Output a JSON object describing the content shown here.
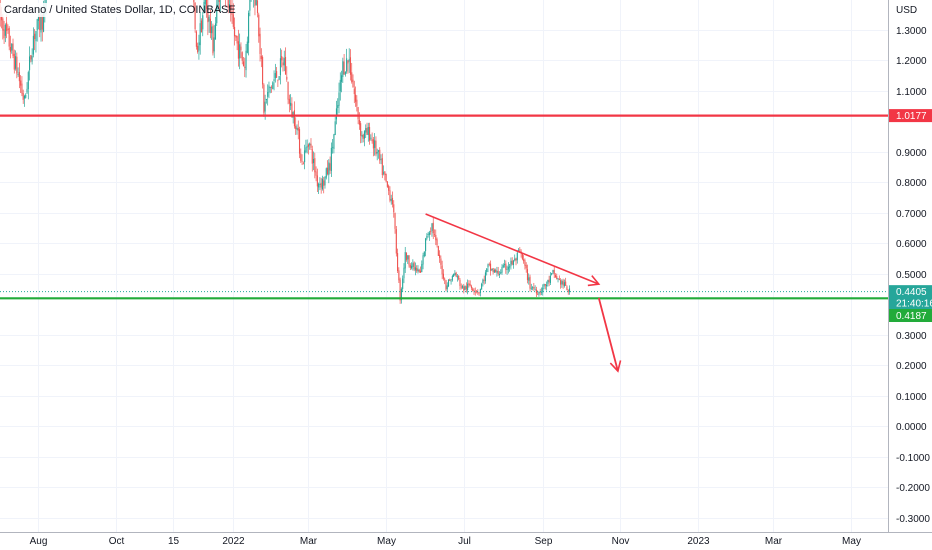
{
  "chart_data": {
    "type": "candlestick",
    "title": "Cardano / United States Dollar, 1D, COINBASE",
    "currency_label": "USD",
    "timeframe": "1D",
    "exchange": "COINBASE",
    "y_ticks": [
      "1.3000",
      "1.2000",
      "1.1000",
      "0.9000",
      "0.8000",
      "0.7000",
      "0.6000",
      "0.5000",
      "0.3000",
      "0.2000",
      "0.1000",
      "0.0000",
      "-0.1000",
      "-0.2000",
      "-0.3000"
    ],
    "y_tick_values": [
      1.3,
      1.2,
      1.1,
      0.9,
      0.8,
      0.7,
      0.6,
      0.5,
      0.3,
      0.2,
      0.1,
      0.0,
      -0.1,
      -0.2,
      -0.3
    ],
    "ylim": [
      -0.33,
      1.435
    ],
    "x_ticks": [
      "Aug",
      "Oct",
      "15",
      "2022",
      "Mar",
      "May",
      "Jul",
      "Sep",
      "Nov",
      "2023",
      "Mar",
      "May"
    ],
    "x_tick_dates": [
      "2021-08-01",
      "2021-10-01",
      "2021-11-15",
      "2022-01-01",
      "2022-03-01",
      "2022-05-01",
      "2022-07-01",
      "2022-09-01",
      "2022-11-01",
      "2023-01-01",
      "2023-03-01",
      "2023-05-01"
    ],
    "xlim": [
      "2021-07-01",
      "2023-07-01"
    ],
    "key_prices": [
      {
        "name": "resistance",
        "label": "1.0177",
        "value": 1.0177,
        "color": "#f23645"
      },
      {
        "name": "last",
        "label": "0.4405",
        "value": 0.4405,
        "color": "#26a69a"
      },
      {
        "name": "support",
        "label": "0.4187",
        "value": 0.4187,
        "color": "#22ab3a"
      }
    ],
    "countdown": "21:40:16",
    "trendline": {
      "from": {
        "date": "2022-06-01",
        "price": 0.695
      },
      "to": {
        "date": "2022-10-15",
        "price": 0.465
      },
      "color": "#f23645"
    },
    "projection": {
      "from": {
        "date": "2022-10-15",
        "price": 0.42
      },
      "to": {
        "date": "2022-10-30",
        "price": 0.18
      },
      "color": "#f23645"
    },
    "colors": {
      "up": "#26a69a",
      "down": "#ef5350",
      "grid": "#f0f3fa",
      "axis_line": "#b2b5be",
      "text": "#131722"
    },
    "legend": "none",
    "grid": true,
    "price_path": [
      {
        "date": "2021-07-01",
        "price": 1.35
      },
      {
        "date": "2021-07-08",
        "price": 1.27
      },
      {
        "date": "2021-07-15",
        "price": 1.17
      },
      {
        "date": "2021-07-21",
        "price": 1.06
      },
      {
        "date": "2021-07-28",
        "price": 1.28
      },
      {
        "date": "2021-08-06",
        "price": 1.35
      },
      {
        "date": "2021-08-25",
        "price": 2.6
      },
      {
        "date": "2021-09-20",
        "price": 2.2
      },
      {
        "date": "2021-10-25",
        "price": 2.1
      },
      {
        "date": "2021-11-10",
        "price": 2.05
      },
      {
        "date": "2021-11-20",
        "price": 1.72
      },
      {
        "date": "2021-11-28",
        "price": 1.58
      },
      {
        "date": "2021-12-03",
        "price": 1.22
      },
      {
        "date": "2021-12-10",
        "price": 1.4
      },
      {
        "date": "2021-12-16",
        "price": 1.25
      },
      {
        "date": "2021-12-23",
        "price": 1.5
      },
      {
        "date": "2021-12-30",
        "price": 1.33
      },
      {
        "date": "2022-01-04",
        "price": 1.25
      },
      {
        "date": "2022-01-10",
        "price": 1.18
      },
      {
        "date": "2022-01-15",
        "price": 1.45
      },
      {
        "date": "2022-01-20",
        "price": 1.38
      },
      {
        "date": "2022-01-25",
        "price": 1.04
      },
      {
        "date": "2022-01-29",
        "price": 1.1
      },
      {
        "date": "2022-02-04",
        "price": 1.15
      },
      {
        "date": "2022-02-10",
        "price": 1.2
      },
      {
        "date": "2022-02-14",
        "price": 1.05
      },
      {
        "date": "2022-02-19",
        "price": 1.0
      },
      {
        "date": "2022-02-24",
        "price": 0.86
      },
      {
        "date": "2022-03-01",
        "price": 0.94
      },
      {
        "date": "2022-03-08",
        "price": 0.8
      },
      {
        "date": "2022-03-13",
        "price": 0.8
      },
      {
        "date": "2022-03-18",
        "price": 0.86
      },
      {
        "date": "2022-03-24",
        "price": 1.05
      },
      {
        "date": "2022-03-28",
        "price": 1.18
      },
      {
        "date": "2022-04-02",
        "price": 1.2
      },
      {
        "date": "2022-04-07",
        "price": 1.06
      },
      {
        "date": "2022-04-12",
        "price": 0.95
      },
      {
        "date": "2022-04-18",
        "price": 0.96
      },
      {
        "date": "2022-04-25",
        "price": 0.88
      },
      {
        "date": "2022-05-02",
        "price": 0.78
      },
      {
        "date": "2022-05-06",
        "price": 0.74
      },
      {
        "date": "2022-05-10",
        "price": 0.52
      },
      {
        "date": "2022-05-12",
        "price": 0.42
      },
      {
        "date": "2022-05-16",
        "price": 0.56
      },
      {
        "date": "2022-05-22",
        "price": 0.52
      },
      {
        "date": "2022-05-28",
        "price": 0.5
      },
      {
        "date": "2022-06-02",
        "price": 0.63
      },
      {
        "date": "2022-06-06",
        "price": 0.66
      },
      {
        "date": "2022-06-12",
        "price": 0.54
      },
      {
        "date": "2022-06-17",
        "price": 0.46
      },
      {
        "date": "2022-06-24",
        "price": 0.5
      },
      {
        "date": "2022-06-30",
        "price": 0.45
      },
      {
        "date": "2022-07-06",
        "price": 0.46
      },
      {
        "date": "2022-07-13",
        "price": 0.44
      },
      {
        "date": "2022-07-20",
        "price": 0.52
      },
      {
        "date": "2022-07-27",
        "price": 0.5
      },
      {
        "date": "2022-08-03",
        "price": 0.52
      },
      {
        "date": "2022-08-10",
        "price": 0.54
      },
      {
        "date": "2022-08-14",
        "price": 0.57
      },
      {
        "date": "2022-08-18",
        "price": 0.52
      },
      {
        "date": "2022-08-22",
        "price": 0.46
      },
      {
        "date": "2022-08-29",
        "price": 0.44
      },
      {
        "date": "2022-09-05",
        "price": 0.47
      },
      {
        "date": "2022-09-09",
        "price": 0.5
      },
      {
        "date": "2022-09-13",
        "price": 0.48
      },
      {
        "date": "2022-09-18",
        "price": 0.46
      },
      {
        "date": "2022-09-22",
        "price": 0.44
      }
    ]
  }
}
